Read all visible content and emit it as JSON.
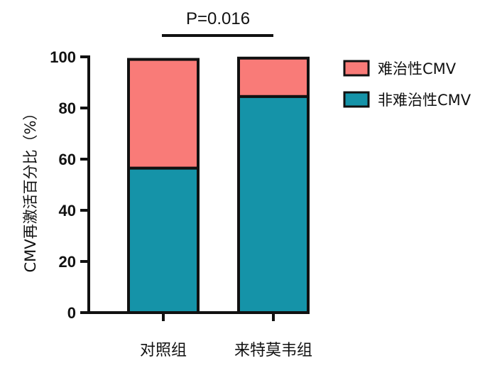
{
  "chart_data": {
    "type": "bar",
    "stacked": true,
    "categories": [
      "对照组",
      "来特莫韦组"
    ],
    "series": [
      {
        "name": "非难治性CMV",
        "color": "#1593a8",
        "values": [
          56.5,
          84.5
        ]
      },
      {
        "name": "难治性CMV",
        "color": "#f97b78",
        "values": [
          42.5,
          15.0
        ]
      }
    ],
    "title": "",
    "xlabel": "",
    "ylabel": "CMV再激活百分比（%）",
    "ylim": [
      0,
      100
    ],
    "yticks": [
      0,
      20,
      40,
      60,
      80,
      100
    ],
    "grid": false,
    "legend_position": "top-right",
    "annotation": {
      "text": "P=0.016",
      "between": [
        "对照组",
        "来特莫韦组"
      ]
    }
  }
}
